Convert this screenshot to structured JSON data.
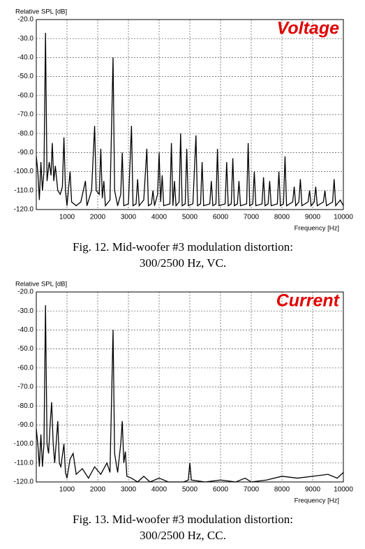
{
  "chart_data": [
    {
      "type": "line",
      "y_label": "Relative SPL [dB]",
      "x_label": "Frequency [Hz]",
      "annotation": "Voltage",
      "caption": [
        "Fig. 12. Mid-woofer #3 modulation distortion:",
        "300/2500 Hz, VC."
      ],
      "color": "#000000",
      "grid": true,
      "xlim": [
        0,
        10000
      ],
      "xticks": [
        1000,
        2000,
        3000,
        4000,
        5000,
        6000,
        7000,
        8000,
        9000,
        10000
      ],
      "ylim": [
        -120,
        -20
      ],
      "yticks": [
        {
          "value": -20,
          "label": "-20.0"
        },
        {
          "value": -30,
          "label": "-30.0"
        },
        {
          "value": -40,
          "label": "-40.0"
        },
        {
          "value": -50,
          "label": "-50.0"
        },
        {
          "value": -60,
          "label": "-60.0"
        },
        {
          "value": -70,
          "label": "-70.0"
        },
        {
          "value": -80,
          "label": "-80.0"
        },
        {
          "value": -90,
          "label": "-90.0"
        },
        {
          "value": -100,
          "label": "-100.0"
        },
        {
          "value": -110,
          "label": "-110.0"
        },
        {
          "value": -120,
          "label": "-120.0"
        }
      ],
      "x": [
        0,
        50,
        100,
        150,
        200,
        250,
        300,
        350,
        420,
        480,
        520,
        570,
        620,
        700,
        780,
        850,
        900,
        950,
        1000,
        1100,
        1150,
        1300,
        1450,
        1600,
        1650,
        1800,
        1900,
        1950,
        2050,
        2100,
        2150,
        2200,
        2250,
        2400,
        2500,
        2550,
        2650,
        2750,
        2800,
        2850,
        3000,
        3100,
        3150,
        3250,
        3300,
        3350,
        3500,
        3600,
        3650,
        3750,
        3800,
        3850,
        3950,
        4000,
        4050,
        4100,
        4150,
        4350,
        4400,
        4450,
        4500,
        4550,
        4650,
        4700,
        4750,
        4850,
        4900,
        4950,
        5100,
        5200,
        5250,
        5350,
        5400,
        5450,
        5650,
        5700,
        5750,
        5850,
        5900,
        5950,
        6150,
        6200,
        6250,
        6350,
        6400,
        6450,
        6550,
        6600,
        6650,
        6850,
        6900,
        6950,
        7050,
        7100,
        7150,
        7350,
        7400,
        7450,
        7550,
        7600,
        7650,
        7850,
        7900,
        7950,
        8050,
        8100,
        8150,
        8350,
        8400,
        8450,
        8550,
        8600,
        8650,
        8850,
        8900,
        8950,
        9050,
        9100,
        9150,
        9350,
        9400,
        9450,
        9650,
        9700,
        9750,
        9900,
        10000
      ],
      "values": [
        -92,
        -100,
        -115,
        -95,
        -110,
        -100,
        -27,
        -105,
        -95,
        -102,
        -85,
        -105,
        -97,
        -110,
        -112,
        -108,
        -82,
        -110,
        -118,
        -100,
        -116,
        -118,
        -116,
        -105,
        -118,
        -110,
        -76,
        -110,
        -112,
        -88,
        -114,
        -105,
        -118,
        -115,
        -40,
        -110,
        -118,
        -112,
        -90,
        -118,
        -117,
        -76,
        -118,
        -117,
        -104,
        -118,
        -115,
        -88,
        -118,
        -117,
        -110,
        -118,
        -112,
        -90,
        -116,
        -102,
        -118,
        -117,
        -85,
        -118,
        -105,
        -118,
        -116,
        -80,
        -118,
        -117,
        -88,
        -118,
        -117,
        -81,
        -118,
        -117,
        -95,
        -118,
        -117,
        -105,
        -118,
        -117,
        -88,
        -118,
        -117,
        -95,
        -118,
        -117,
        -93,
        -118,
        -117,
        -105,
        -118,
        -117,
        -85,
        -118,
        -117,
        -100,
        -118,
        -117,
        -103,
        -118,
        -117,
        -105,
        -118,
        -117,
        -100,
        -118,
        -117,
        -92,
        -118,
        -116,
        -108,
        -118,
        -116,
        -104,
        -118,
        -116,
        -110,
        -118,
        -116,
        -108,
        -118,
        -116,
        -110,
        -118,
        -116,
        -104,
        -118,
        -115,
        -118
      ]
    },
    {
      "type": "line",
      "y_label": "Relative SPL [dB]",
      "x_label": "Frequency [Hz]",
      "annotation": "Current",
      "caption": [
        "Fig. 13. Mid-woofer #3 modulation distortion:",
        "300/2500 Hz, CC."
      ],
      "color": "#000000",
      "grid": true,
      "xlim": [
        0,
        10000
      ],
      "xticks": [
        1000,
        2000,
        3000,
        4000,
        5000,
        6000,
        7000,
        8000,
        9000,
        10000
      ],
      "ylim": [
        -120,
        -20
      ],
      "yticks": [
        {
          "value": -20,
          "label": "-20.0"
        },
        {
          "value": -30,
          "label": "-30.0"
        },
        {
          "value": -40,
          "label": "-40.0"
        },
        {
          "value": -50,
          "label": "-50.0"
        },
        {
          "value": -60,
          "label": "-60.0"
        },
        {
          "value": -70,
          "label": "-70.0"
        },
        {
          "value": -80,
          "label": "-80.0"
        },
        {
          "value": -90,
          "label": "-90.0"
        },
        {
          "value": -100,
          "label": "-100.0"
        },
        {
          "value": -110,
          "label": "-110.0"
        },
        {
          "value": -120,
          "label": "-120.0"
        }
      ],
      "x": [
        0,
        50,
        100,
        150,
        200,
        250,
        300,
        350,
        400,
        450,
        500,
        550,
        600,
        700,
        750,
        800,
        900,
        950,
        1000,
        1100,
        1200,
        1300,
        1500,
        1700,
        1900,
        2100,
        2300,
        2400,
        2500,
        2550,
        2650,
        2750,
        2800,
        2850,
        2900,
        2950,
        3100,
        3300,
        3500,
        3700,
        4000,
        4300,
        4800,
        4950,
        5000,
        5050,
        5500,
        6000,
        6500,
        6800,
        7000,
        7500,
        8000,
        8500,
        9000,
        9500,
        9800,
        10000
      ],
      "values": [
        -92,
        -100,
        -112,
        -95,
        -112,
        -100,
        -27,
        -100,
        -105,
        -90,
        -78,
        -100,
        -110,
        -88,
        -110,
        -112,
        -100,
        -115,
        -118,
        -108,
        -105,
        -116,
        -113,
        -118,
        -112,
        -116,
        -110,
        -115,
        -40,
        -105,
        -115,
        -100,
        -88,
        -110,
        -104,
        -117,
        -118,
        -120,
        -117,
        -120,
        -118,
        -120,
        -120,
        -119,
        -110,
        -119,
        -120,
        -119,
        -120,
        -118,
        -120,
        -119,
        -117,
        -118,
        -117,
        -116,
        -118,
        -115
      ]
    }
  ]
}
